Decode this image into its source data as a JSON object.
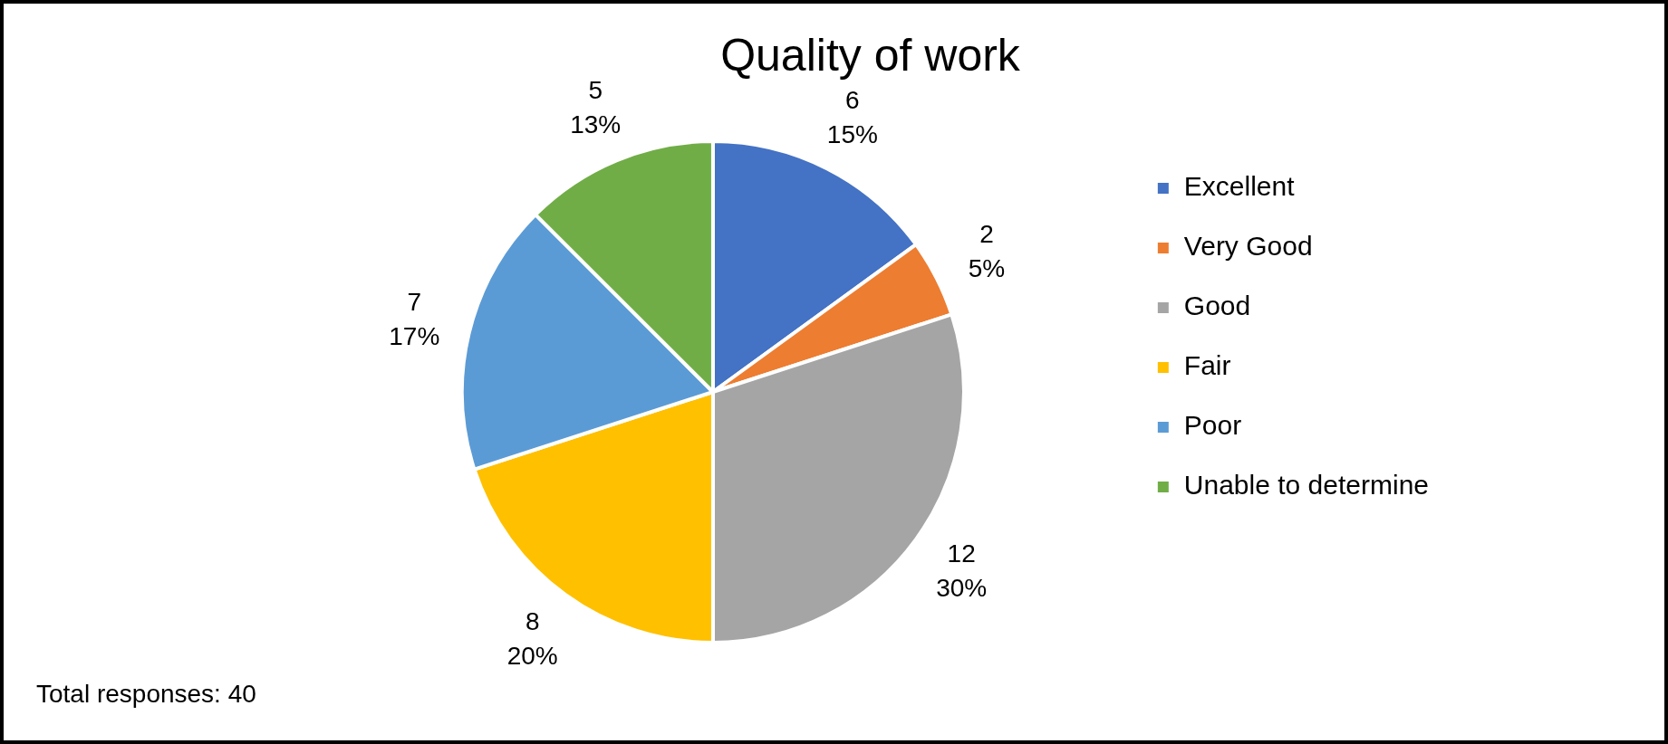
{
  "chart_data": {
    "type": "pie",
    "title": "Quality of work",
    "categories": [
      "Excellent",
      "Very Good",
      "Good",
      "Fair",
      "Poor",
      "Unable to determine"
    ],
    "values": [
      6,
      2,
      12,
      8,
      7,
      5
    ],
    "colors": [
      "#4472c4",
      "#ed7d31",
      "#a5a5a5",
      "#ffc000",
      "#5b9bd5",
      "#70ad47"
    ],
    "value_labels": [
      "6\n15%",
      "2\n5%",
      "12\n30%",
      "8\n20%",
      "7\n17%",
      "5\n13%"
    ],
    "legend": "right",
    "annotations": [
      "Total responses: 40"
    ]
  }
}
